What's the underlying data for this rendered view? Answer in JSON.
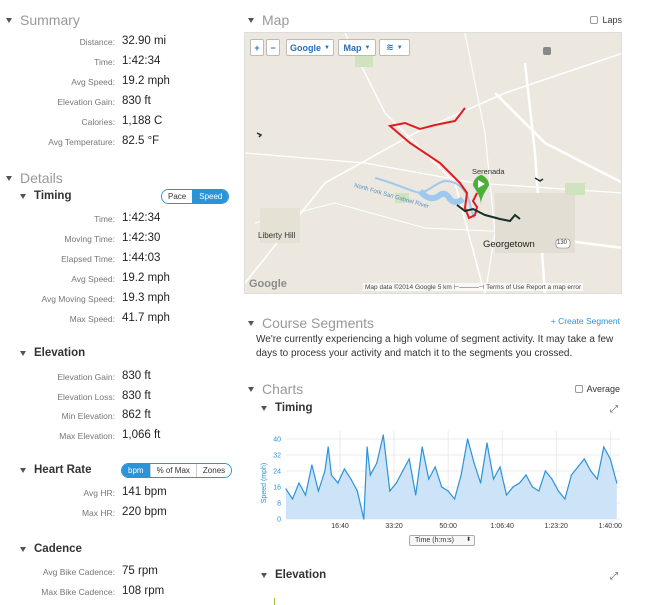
{
  "summary": {
    "heading": "Summary",
    "rows": [
      {
        "label": "Distance:",
        "value": "32.90 mi"
      },
      {
        "label": "Time:",
        "value": "1:42:34"
      },
      {
        "label": "Avg Speed:",
        "value": "19.2 mph"
      },
      {
        "label": "Elevation Gain:",
        "value": "830 ft"
      },
      {
        "label": "Calories:",
        "value": "1,188 C"
      },
      {
        "label": "Avg Temperature:",
        "value": "82.5 °F"
      }
    ]
  },
  "details": {
    "heading": "Details",
    "timing": {
      "title": "Timing",
      "toggle": [
        "Pace",
        "Speed"
      ],
      "rows": [
        {
          "label": "Time:",
          "value": "1:42:34"
        },
        {
          "label": "Moving Time:",
          "value": "1:42:30"
        },
        {
          "label": "Elapsed Time:",
          "value": "1:44:03"
        },
        {
          "label": "Avg Speed:",
          "value": "19.2 mph"
        },
        {
          "label": "Avg Moving Speed:",
          "value": "19.3 mph"
        },
        {
          "label": "Max Speed:",
          "value": "41.7 mph"
        }
      ]
    },
    "elevation": {
      "title": "Elevation",
      "rows": [
        {
          "label": "Elevation Gain:",
          "value": "830 ft"
        },
        {
          "label": "Elevation Loss:",
          "value": "830 ft"
        },
        {
          "label": "Min Elevation:",
          "value": "862 ft"
        },
        {
          "label": "Max Elevation:",
          "value": "1,066 ft"
        }
      ]
    },
    "heart_rate": {
      "title": "Heart Rate",
      "toggle": [
        "bpm",
        "% of Max",
        "Zones"
      ],
      "rows": [
        {
          "label": "Avg HR:",
          "value": "141 bpm"
        },
        {
          "label": "Max HR:",
          "value": "220 bpm"
        }
      ]
    },
    "cadence": {
      "title": "Cadence",
      "rows": [
        {
          "label": "Avg Bike Cadence:",
          "value": "75 rpm"
        },
        {
          "label": "Max Bike Cadence:",
          "value": "108 rpm"
        }
      ]
    }
  },
  "map": {
    "heading": "Map",
    "laps_label": "Laps",
    "zoom_in": "+",
    "zoom_out": "−",
    "provider": "Google",
    "type": "Map",
    "labels": {
      "liberty_hill": "Liberty Hill",
      "serenada": "Serenada",
      "georgetown": "Georgetown",
      "river": "North Fork San Gabriel River",
      "route_130": "130"
    },
    "google_logo": "Google",
    "footer": "Map data ©2014 Google    5 km ⊢———⊣    Terms of Use    Report a map error"
  },
  "segments": {
    "heading": "Course Segments",
    "create_link": "+ Create Segment",
    "message": "We're currently experiencing a high volume of segment activity. It may take a few days to process your activity and match it to the segments you crossed."
  },
  "charts": {
    "heading": "Charts",
    "average_label": "Average",
    "timing_title": "Timing",
    "elevation_title": "Elevation",
    "time_select": "Time (h:m:s)",
    "accent": "#2b93d8"
  },
  "chart_data": {
    "type": "area",
    "title": "Timing",
    "xlabel": "Time (h:m:s)",
    "ylabel": "Speed (mph)",
    "ylim": [
      0,
      44
    ],
    "yticks": [
      0,
      8,
      16,
      24,
      32,
      40
    ],
    "xtick_labels": [
      "16:40",
      "33:20",
      "50:00",
      "1:06:40",
      "1:23:20",
      "1:40:00"
    ],
    "xtick_minutes": [
      16.67,
      33.33,
      50,
      66.67,
      83.33,
      100
    ],
    "xlim_minutes": [
      0,
      103
    ],
    "series": [
      {
        "minutes": [
          0,
          2,
          4,
          6,
          8,
          10,
          12,
          13,
          14,
          16,
          18,
          20,
          22,
          24,
          25,
          26,
          28,
          30,
          32,
          34,
          36,
          38,
          40,
          42,
          44,
          46,
          48,
          50,
          52,
          54,
          56,
          58,
          60,
          62,
          64,
          66,
          68,
          70,
          72,
          74,
          76,
          78,
          80,
          82,
          84,
          86,
          88,
          90,
          92,
          94,
          96,
          98,
          100,
          102
        ],
        "values": [
          15,
          10,
          18,
          12,
          27,
          14,
          24,
          36,
          22,
          18,
          25,
          20,
          14,
          0,
          36,
          22,
          28,
          42,
          14,
          18,
          24,
          30,
          12,
          36,
          20,
          26,
          16,
          14,
          10,
          22,
          40,
          28,
          18,
          38,
          20,
          26,
          12,
          16,
          18,
          22,
          16,
          14,
          24,
          20,
          14,
          10,
          22,
          26,
          30,
          24,
          20,
          36,
          30,
          18
        ]
      }
    ]
  }
}
